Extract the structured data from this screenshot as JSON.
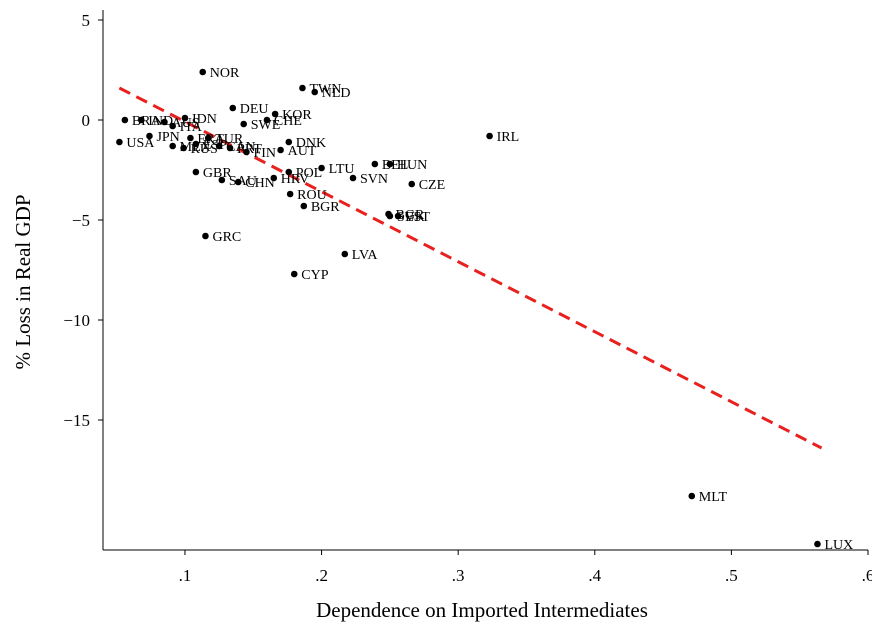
{
  "chart_data": {
    "type": "scatter",
    "xlabel": "Dependence on Imported Intermediates",
    "ylabel": "% Loss in Real GDP",
    "xlim": [
      0.04,
      0.6
    ],
    "ylim": [
      -21.5,
      5.5
    ],
    "x_ticks": [
      {
        "value": 0.1,
        "label": ".1"
      },
      {
        "value": 0.2,
        "label": ".2"
      },
      {
        "value": 0.3,
        "label": ".3"
      },
      {
        "value": 0.4,
        "label": ".4"
      },
      {
        "value": 0.5,
        "label": ".5"
      },
      {
        "value": 0.6,
        "label": ".6"
      }
    ],
    "y_ticks": [
      {
        "value": 5,
        "label": "5"
      },
      {
        "value": 0,
        "label": "0"
      },
      {
        "value": -5,
        "label": "−5"
      },
      {
        "value": -10,
        "label": "−10"
      },
      {
        "value": -15,
        "label": "−15"
      }
    ],
    "fit_line": {
      "x": [
        0.052,
        0.566
      ],
      "y": [
        1.6,
        -16.4
      ],
      "color": "#e8201e",
      "style": "dashed"
    },
    "grid": false,
    "point_color": "#000000",
    "points": [
      {
        "label": "NOR",
        "x": 0.113,
        "y": 2.4
      },
      {
        "label": "TWN",
        "x": 0.186,
        "y": 1.6
      },
      {
        "label": "NLD",
        "x": 0.195,
        "y": 1.4
      },
      {
        "label": "DEU",
        "x": 0.135,
        "y": 0.6
      },
      {
        "label": "KOR",
        "x": 0.166,
        "y": 0.3
      },
      {
        "label": "CHE",
        "x": 0.16,
        "y": 0.0
      },
      {
        "label": "SWE",
        "x": 0.143,
        "y": -0.2
      },
      {
        "label": "BRA",
        "x": 0.056,
        "y": 0.0
      },
      {
        "label": "IND",
        "x": 0.068,
        "y": 0.0
      },
      {
        "label": "AUS",
        "x": 0.085,
        "y": -0.1
      },
      {
        "label": "ITA",
        "x": 0.091,
        "y": -0.3
      },
      {
        "label": "IDN",
        "x": 0.1,
        "y": 0.1
      },
      {
        "label": "JPN",
        "x": 0.074,
        "y": -0.8
      },
      {
        "label": "FRA",
        "x": 0.104,
        "y": -0.9
      },
      {
        "label": "TUR",
        "x": 0.117,
        "y": -0.9
      },
      {
        "label": "USA",
        "x": 0.052,
        "y": -1.1
      },
      {
        "label": "MEX",
        "x": 0.091,
        "y": -1.3
      },
      {
        "label": "RUS",
        "x": 0.099,
        "y": -1.4
      },
      {
        "label": "ESP",
        "x": 0.108,
        "y": -1.2
      },
      {
        "label": "CAN",
        "x": 0.125,
        "y": -1.3
      },
      {
        "label": "PRT",
        "x": 0.133,
        "y": -1.4
      },
      {
        "label": "FIN",
        "x": 0.145,
        "y": -1.6
      },
      {
        "label": "DNK",
        "x": 0.176,
        "y": -1.1
      },
      {
        "label": "AUT",
        "x": 0.17,
        "y": -1.5
      },
      {
        "label": "GBR",
        "x": 0.108,
        "y": -2.6
      },
      {
        "label": "SAU",
        "x": 0.127,
        "y": -3.0
      },
      {
        "label": "CHN",
        "x": 0.139,
        "y": -3.1
      },
      {
        "label": "HRV",
        "x": 0.165,
        "y": -2.9
      },
      {
        "label": "POL",
        "x": 0.176,
        "y": -2.6
      },
      {
        "label": "LTU",
        "x": 0.2,
        "y": -2.4
      },
      {
        "label": "SVN",
        "x": 0.223,
        "y": -2.9
      },
      {
        "label": "BEL",
        "x": 0.239,
        "y": -2.2
      },
      {
        "label": "HUN",
        "x": 0.25,
        "y": -2.2
      },
      {
        "label": "CZE",
        "x": 0.266,
        "y": -3.2
      },
      {
        "label": "IRL",
        "x": 0.323,
        "y": -0.8
      },
      {
        "label": "ROU",
        "x": 0.177,
        "y": -3.7
      },
      {
        "label": "BGR",
        "x": 0.187,
        "y": -4.3
      },
      {
        "label": "BGR",
        "x": 0.249,
        "y": -4.7
      },
      {
        "label": "EST",
        "x": 0.256,
        "y": -4.8
      },
      {
        "label": "SVK",
        "x": 0.25,
        "y": -4.8
      },
      {
        "label": "GRC",
        "x": 0.115,
        "y": -5.8
      },
      {
        "label": "LVA",
        "x": 0.217,
        "y": -6.7
      },
      {
        "label": "CYP",
        "x": 0.18,
        "y": -7.7
      },
      {
        "label": "MLT",
        "x": 0.471,
        "y": -18.8
      },
      {
        "label": "LUX",
        "x": 0.563,
        "y": -21.2
      }
    ]
  }
}
